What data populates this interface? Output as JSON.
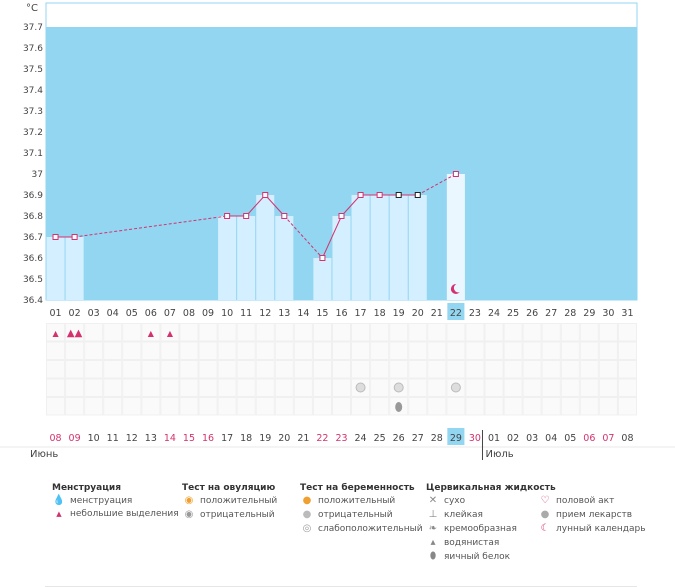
{
  "chart_data": {
    "type": "line",
    "ylabel": "°C",
    "ylim": [
      36.4,
      37.8
    ],
    "y_ticks": [
      "36.4",
      "36.5",
      "36.6",
      "36.7",
      "36.8",
      "36.9",
      "37",
      "37.1",
      "37.2",
      "37.3",
      "37.4",
      "37.5",
      "37.6",
      "37.7"
    ],
    "cycle_days": [
      "01",
      "02",
      "03",
      "04",
      "05",
      "06",
      "07",
      "08",
      "09",
      "10",
      "11",
      "12",
      "13",
      "14",
      "15",
      "16",
      "17",
      "18",
      "19",
      "20",
      "21",
      "22",
      "23",
      "24",
      "25",
      "26",
      "27",
      "28",
      "29",
      "30",
      "31"
    ],
    "highlight_day": "22",
    "series": [
      {
        "values": [
          36.7,
          36.7,
          null,
          null,
          null,
          null,
          null,
          null,
          null,
          36.8,
          36.8,
          36.9,
          36.8,
          null,
          36.6,
          36.8,
          36.9,
          36.9,
          36.9,
          36.9,
          null,
          37.0,
          null,
          null,
          null,
          null,
          null,
          null,
          null,
          null,
          null
        ]
      }
    ],
    "bar_days": [
      1,
      2,
      10,
      11,
      12,
      13,
      15,
      16,
      17,
      18,
      19,
      20,
      22
    ],
    "marked_black_days": [
      19,
      20
    ],
    "moon_day": 22,
    "calendar_dates": [
      "08",
      "09",
      "10",
      "11",
      "12",
      "13",
      "14",
      "15",
      "16",
      "17",
      "18",
      "19",
      "20",
      "21",
      "22",
      "23",
      "24",
      "25",
      "26",
      "27",
      "28",
      "29",
      "30",
      "01",
      "02",
      "03",
      "04",
      "05",
      "06",
      "07",
      "08"
    ],
    "calendar_red_dates_idx": [
      0,
      1,
      6,
      7,
      8,
      14,
      15,
      22,
      28,
      29
    ],
    "calendar_highlight_idx": 21,
    "month_left": "Июнь",
    "month_right": "Июль",
    "month_split_idx": 23,
    "events": {
      "menstruation_heavy": [
        1
      ],
      "menstruation_light": [
        0,
        5,
        6
      ],
      "pregnancy_test_negative": [
        16,
        18,
        21
      ],
      "cervical_watery": [
        18
      ]
    }
  },
  "legend": {
    "col1": {
      "title": "Менструация",
      "items": [
        {
          "icon": "drop-heavy-icon",
          "label": "менструация"
        },
        {
          "icon": "drop-light-icon",
          "label": "небольшие выделения"
        }
      ]
    },
    "col2": {
      "title": "Тест на овуляцию",
      "items": [
        {
          "icon": "ovulation-positive-icon",
          "label": "положительный"
        },
        {
          "icon": "ovulation-negative-icon",
          "label": "отрицательный"
        }
      ]
    },
    "col3": {
      "title": "Тест на беременность",
      "items": [
        {
          "icon": "pregnancy-positive-icon",
          "label": "положительный"
        },
        {
          "icon": "pregnancy-negative-icon",
          "label": "отрицательный"
        },
        {
          "icon": "pregnancy-weak-icon",
          "label": "слабоположительный"
        }
      ]
    },
    "col4": {
      "title": "Цервикальная жидкость",
      "items": [
        {
          "icon": "dry-icon",
          "label": "сухо"
        },
        {
          "icon": "sticky-icon",
          "label": "клейкая"
        },
        {
          "icon": "creamy-icon",
          "label": "кремообразная"
        },
        {
          "icon": "watery-icon",
          "label": "водянистая"
        },
        {
          "icon": "egg-white-icon",
          "label": "яичный белок"
        }
      ]
    },
    "col5": {
      "items": [
        {
          "icon": "heart-icon",
          "label": "половой акт"
        },
        {
          "icon": "pill-icon",
          "label": "прием лекарств"
        },
        {
          "icon": "moon-icon",
          "label": "лунный календарь"
        }
      ]
    }
  },
  "colors": {
    "plot_bg": "#93d6f2",
    "bar": "#d4efff",
    "line": "#d4326e",
    "red_text": "#d4326e",
    "highlight": "#93d6f2"
  }
}
